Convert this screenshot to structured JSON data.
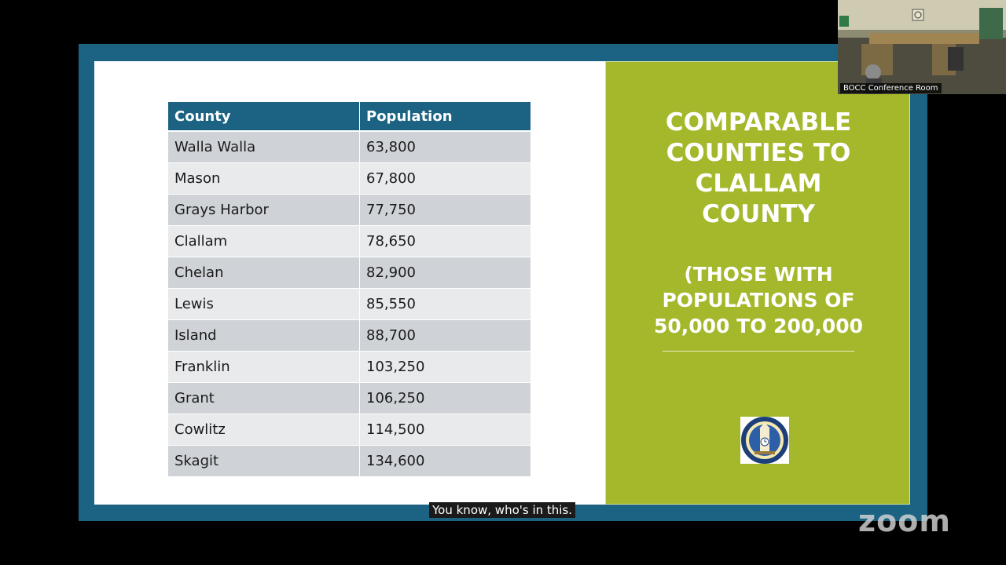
{
  "slide": {
    "table": {
      "headers": [
        "County",
        "Population"
      ],
      "rows": [
        [
          "Walla Walla",
          "63,800"
        ],
        [
          "Mason",
          "67,800"
        ],
        [
          "Grays Harbor",
          "77,750"
        ],
        [
          "Clallam",
          "78,650"
        ],
        [
          "Chelan",
          "82,900"
        ],
        [
          "Lewis",
          "85,550"
        ],
        [
          "Island",
          "88,700"
        ],
        [
          "Franklin",
          "103,250"
        ],
        [
          "Grant",
          "106,250"
        ],
        [
          "Cowlitz",
          "114,500"
        ],
        [
          "Skagit",
          "134,600"
        ]
      ]
    },
    "title": "COMPARABLE\nCOUNTIES TO\nCLALLAM\nCOUNTY",
    "subtitle": "(THOSE WITH\nPOPULATIONS OF\n50,000 TO 200,000"
  },
  "webcam": {
    "label": "BOCC Conference Room"
  },
  "caption": "You know, who's in this.",
  "zoom_logo": "zoom",
  "colors": {
    "frame_blue": "#1c6383",
    "green_panel": "#a5b72b",
    "row_dark": "#cfd3d7",
    "row_light": "#e8eaec"
  },
  "icons": {
    "seal": "clallam-county-seal"
  }
}
